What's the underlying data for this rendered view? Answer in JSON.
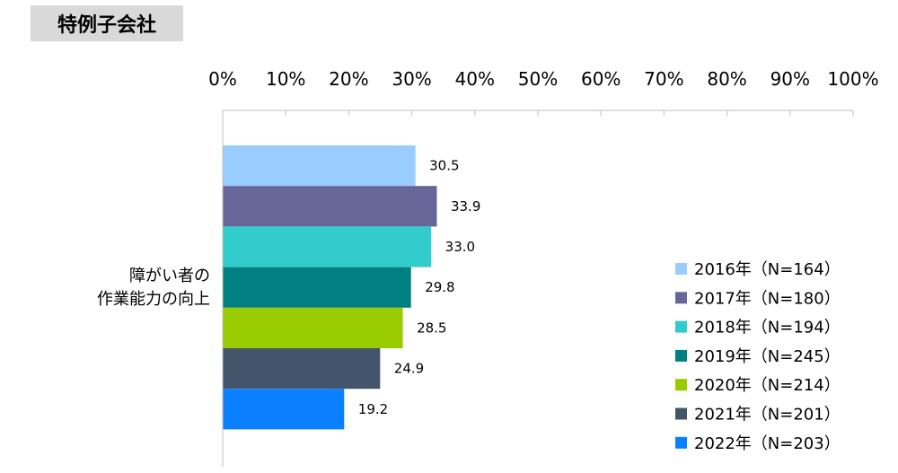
{
  "header": {
    "title": "特例子会社"
  },
  "chart_data": {
    "type": "bar",
    "orientation": "horizontal",
    "xlim": [
      0,
      100
    ],
    "x_ticks": [
      "0%",
      "10%",
      "20%",
      "30%",
      "40%",
      "50%",
      "60%",
      "70%",
      "80%",
      "90%",
      "100%"
    ],
    "categories": [
      [
        "障がい者の",
        "作業能力の向上"
      ]
    ],
    "series": [
      {
        "name": "2016年（N=164）",
        "values": [
          30.5
        ],
        "label": "30.5",
        "color": "#99ccff"
      },
      {
        "name": "2017年（N=180）",
        "values": [
          33.9
        ],
        "label": "33.9",
        "color": "#666699"
      },
      {
        "name": "2018年（N=194）",
        "values": [
          33.0
        ],
        "label": "33.0",
        "color": "#33cccc"
      },
      {
        "name": "2019年（N=245）",
        "values": [
          29.8
        ],
        "label": "29.8",
        "color": "#008080"
      },
      {
        "name": "2020年（N=214）",
        "values": [
          28.5
        ],
        "label": "28.5",
        "color": "#99cc00"
      },
      {
        "name": "2021年（N=201）",
        "values": [
          24.9
        ],
        "label": "24.9",
        "color": "#44546a"
      },
      {
        "name": "2022年（N=203）",
        "values": [
          19.2
        ],
        "label": "19.2",
        "color": "#0a80ff"
      }
    ],
    "legend": "right",
    "grid": false
  }
}
